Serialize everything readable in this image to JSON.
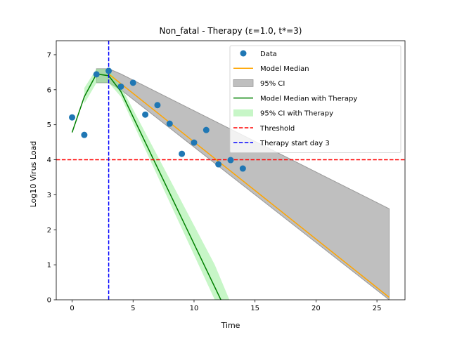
{
  "chart_data": {
    "type": "line",
    "title": "Non_fatal - Therapy (ε=1.0, t*=3)",
    "xlabel": "Time",
    "ylabel": "Log10 Virus Load",
    "xlim": [
      -1.3,
      27.3
    ],
    "ylim": [
      0,
      7.4
    ],
    "xticks": [
      0,
      5,
      10,
      15,
      20,
      25
    ],
    "yticks": [
      0,
      1,
      2,
      3,
      4,
      5,
      6,
      7
    ],
    "grid": false,
    "legend_position": "top-right",
    "data_points": {
      "name": "Data",
      "color": "#1f77b4",
      "x": [
        0,
        1,
        2,
        3,
        4,
        5,
        6,
        7,
        8,
        9,
        10,
        11,
        12,
        13,
        14
      ],
      "y": [
        5.21,
        4.71,
        6.44,
        6.54,
        6.09,
        6.2,
        5.29,
        5.56,
        5.03,
        4.17,
        4.49,
        4.85,
        3.87,
        3.99,
        3.75
      ]
    },
    "model_median": {
      "name": "Model Median",
      "color": "#ffa500",
      "x": [
        3,
        26
      ],
      "y": [
        6.45,
        0.07
      ]
    },
    "ci": {
      "name": "95% CI",
      "color": "#808080",
      "x": [
        2,
        3,
        4,
        26
      ],
      "upper": [
        6.6,
        6.6,
        6.45,
        2.6
      ],
      "lower": [
        6.2,
        6.2,
        6.0,
        0
      ]
    },
    "therapy_median": {
      "name": "Model Median with Therapy",
      "color": "#008000",
      "x": [
        0,
        1,
        2,
        3,
        4,
        12.2
      ],
      "y": [
        4.78,
        5.8,
        6.45,
        6.4,
        5.95,
        0
      ]
    },
    "therapy_ci": {
      "name": "95% CI with Therapy",
      "color": "#90ee90",
      "x": [
        1,
        2,
        3,
        4,
        11.7,
        12.9
      ],
      "upper": [
        6.05,
        6.6,
        6.6,
        6.1,
        1.0,
        0
      ],
      "lower": [
        5.6,
        6.2,
        6.2,
        5.8,
        0,
        0
      ]
    },
    "threshold": {
      "name": "Threshold",
      "color": "#ff0000",
      "y": 4.0
    },
    "therapy_start": {
      "name": "Therapy start day 3",
      "color": "#0000ff",
      "x": 3
    }
  }
}
